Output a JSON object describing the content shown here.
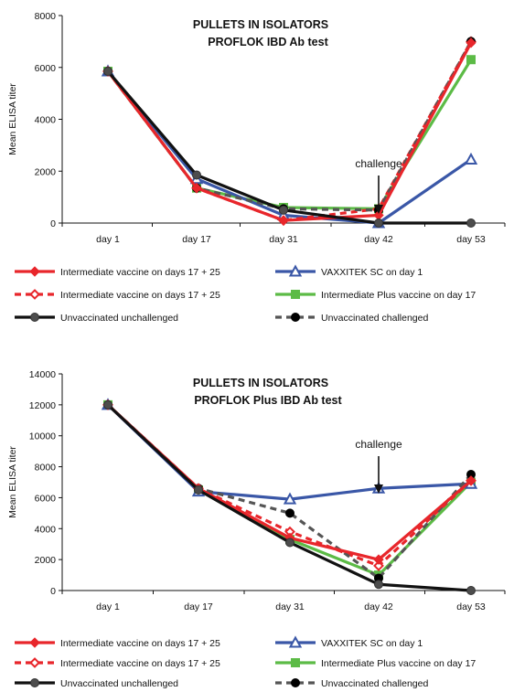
{
  "chart_data": [
    {
      "type": "line",
      "title": "PULLETS IN ISOLATORS",
      "subtitle": "PROFLOK  IBD Ab test",
      "ylabel": "Mean ELISA titer",
      "xlabel": "",
      "categories": [
        "day 1",
        "day 17",
        "day 31",
        "day 42",
        "day 53"
      ],
      "ylim": [
        0,
        8000
      ],
      "yticks": [
        0,
        2000,
        4000,
        6000,
        8000
      ],
      "grid": false,
      "legend_position": "bottom",
      "annotation": {
        "text": "challenge",
        "category": "day 42"
      },
      "series": [
        {
          "name": "Intermediate vaccine on days 17 + 25",
          "color": "#e8262b",
          "marker": "diamond-filled",
          "dash": "solid",
          "values": [
            5850,
            1350,
            100,
            300,
            6950
          ]
        },
        {
          "name": "Intermediate vaccine on days 17 + 25",
          "color": "#e8262b",
          "marker": "diamond-open",
          "dash": "dashed",
          "values": [
            5850,
            1350,
            100,
            550,
            7000
          ]
        },
        {
          "name": "Unvaccinated unchallenged",
          "color": "#111111",
          "marker": "circle-gray",
          "dash": "solid",
          "values": [
            5850,
            1850,
            500,
            0,
            0
          ]
        },
        {
          "name": "VAXXITEK SC on day 1",
          "color": "#3a57a7",
          "marker": "triangle-open",
          "dash": "solid",
          "values": [
            5850,
            1700,
            300,
            0,
            2450
          ]
        },
        {
          "name": "Intermediate Plus vaccine on day 17",
          "color": "#5cbb46",
          "marker": "square-filled",
          "dash": "solid",
          "values": [
            5850,
            1350,
            600,
            550,
            6300
          ]
        },
        {
          "name": "Unvaccinated challenged",
          "color": "#555555",
          "marker": "circle-black",
          "dash": "dashed",
          "values": [
            5850,
            1350,
            550,
            500,
            7000
          ]
        }
      ]
    },
    {
      "type": "line",
      "title": "PULLETS IN ISOLATORS",
      "subtitle": "PROFLOK  Plus IBD Ab test",
      "ylabel": "Mean ELISA titer",
      "xlabel": "",
      "categories": [
        "day 1",
        "day 17",
        "day 31",
        "day 42",
        "day 53"
      ],
      "ylim": [
        0,
        14000
      ],
      "yticks": [
        0,
        2000,
        4000,
        6000,
        8000,
        10000,
        12000,
        14000
      ],
      "grid": false,
      "legend_position": "bottom",
      "annotation": {
        "text": "challenge",
        "category": "day 42"
      },
      "series": [
        {
          "name": "Intermediate vaccine on days 17 + 25",
          "color": "#e8262b",
          "marker": "diamond-filled",
          "dash": "solid",
          "values": [
            12000,
            6600,
            3400,
            2000,
            7100
          ]
        },
        {
          "name": "Intermediate vaccine on days 17 + 25",
          "color": "#e8262b",
          "marker": "diamond-open",
          "dash": "dashed",
          "values": [
            12000,
            6600,
            3800,
            1600,
            7100
          ]
        },
        {
          "name": "Unvaccinated unchallenged",
          "color": "#111111",
          "marker": "circle-gray",
          "dash": "solid",
          "values": [
            12000,
            6500,
            3100,
            400,
            0
          ]
        },
        {
          "name": "VAXXITEK SC on day 1",
          "color": "#3a57a7",
          "marker": "triangle-open",
          "dash": "solid",
          "values": [
            12000,
            6400,
            5900,
            6600,
            6900
          ]
        },
        {
          "name": "Intermediate Plus vaccine on day 17",
          "color": "#5cbb46",
          "marker": "square-filled",
          "dash": "solid",
          "values": [
            12000,
            6500,
            3300,
            1000,
            7000
          ]
        },
        {
          "name": "Unvaccinated challenged",
          "color": "#555555",
          "marker": "circle-black",
          "dash": "dashed",
          "values": [
            12000,
            6600,
            5000,
            800,
            7500
          ]
        }
      ]
    }
  ]
}
